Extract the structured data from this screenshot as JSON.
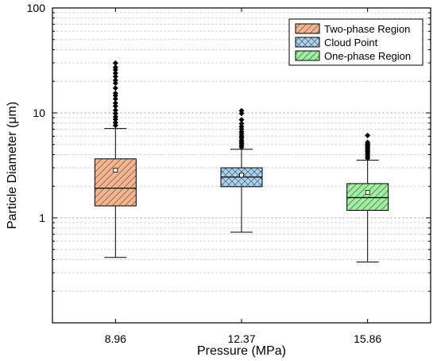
{
  "chart_data": {
    "type": "box",
    "xlabel": "Pressure (MPa)",
    "ylabel": "Particle Diameter (μm)",
    "yscale": "log",
    "ylim": [
      0.1,
      100
    ],
    "ytick_labels": [
      "1",
      "10",
      "100"
    ],
    "grid": "horizontal dashed (major and minor)",
    "legend_position": "top-right",
    "categories": [
      "8.96",
      "12.37",
      "15.86"
    ],
    "series": [
      {
        "name": "Two-phase Region",
        "category": "8.96",
        "color": "#f5b48c",
        "hatch": "diagonal",
        "whisker_low": 0.42,
        "q1": 1.3,
        "median": 1.92,
        "q3": 3.65,
        "whisker_high": 7.1,
        "mean": 2.85,
        "outliers": [
          7.6,
          8.1,
          8.7,
          9.2,
          9.9,
          10.6,
          11.6,
          12.4,
          13.6,
          14.6,
          15.4,
          17.2,
          19.2,
          20.5,
          22.2,
          23.9,
          25.7,
          27.2,
          29.8
        ]
      },
      {
        "name": "Cloud Point",
        "category": "12.37",
        "color": "#a6d4f2",
        "hatch": "crosshatch",
        "whisker_low": 0.73,
        "q1": 1.98,
        "median": 2.45,
        "q3": 3.0,
        "whisker_high": 4.5,
        "mean": 2.55,
        "outliers": [
          4.7,
          4.9,
          5.1,
          5.3,
          5.5,
          5.8,
          6.0,
          6.3,
          6.6,
          7.0,
          7.4,
          7.9,
          8.6,
          9.9,
          10.5
        ]
      },
      {
        "name": "One-phase Region",
        "category": "15.86",
        "color": "#9df09d",
        "hatch": "diagonal",
        "whisker_low": 0.38,
        "q1": 1.18,
        "median": 1.56,
        "q3": 2.12,
        "whisker_high": 3.55,
        "mean": 1.75,
        "outliers": [
          3.7,
          3.85,
          4.0,
          4.15,
          4.3,
          4.45,
          4.6,
          4.75,
          4.9,
          5.05,
          5.25,
          6.1
        ]
      }
    ]
  }
}
